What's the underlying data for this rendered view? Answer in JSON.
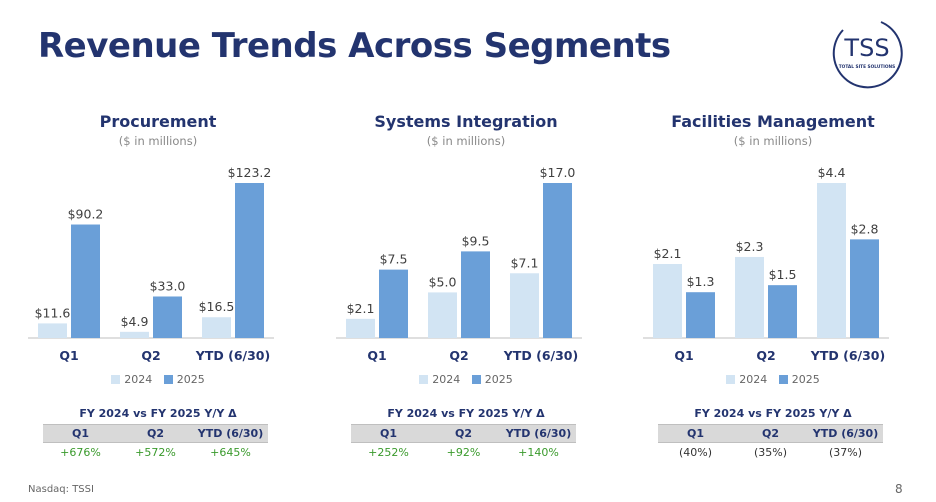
{
  "page": {
    "title": "Revenue Trends Across Segments",
    "logo_text": "TSS",
    "logo_subtext": "TOTAL SITE SOLUTIONS",
    "footer_left": "Nasdaq: TSSI",
    "page_number": "8"
  },
  "colors": {
    "series_2024": "#d2e4f3",
    "series_2025": "#6a9fd8",
    "title": "#23346f",
    "positive": "#3a9a2c"
  },
  "chart_data": [
    {
      "type": "bar",
      "title": "Procurement",
      "subtitle": "($ in millions)",
      "categories": [
        "Q1",
        "Q2",
        "YTD (6/30)"
      ],
      "series": [
        {
          "name": "2024",
          "values": [
            11.6,
            4.9,
            16.5
          ],
          "labels": [
            "$11.6",
            "$4.9",
            "$16.5"
          ]
        },
        {
          "name": "2025",
          "values": [
            90.2,
            33.0,
            123.2
          ],
          "labels": [
            "$90.2",
            "$33.0",
            "$123.2"
          ]
        }
      ],
      "ylim": [
        0,
        123.2
      ],
      "legend": "bottom",
      "grid": false,
      "yoy": {
        "title": "FY 2024 vs FY 2025 Y/Y Δ",
        "headers": [
          "Q1",
          "Q2",
          "YTD (6/30)"
        ],
        "values": [
          "+676%",
          "+572%",
          "+645%"
        ],
        "positive": true
      }
    },
    {
      "type": "bar",
      "title": "Systems Integration",
      "subtitle": "($ in millions)",
      "categories": [
        "Q1",
        "Q2",
        "YTD (6/30)"
      ],
      "series": [
        {
          "name": "2024",
          "values": [
            2.1,
            5.0,
            7.1
          ],
          "labels": [
            "$2.1",
            "$5.0",
            "$7.1"
          ]
        },
        {
          "name": "2025",
          "values": [
            7.5,
            9.5,
            17.0
          ],
          "labels": [
            "$7.5",
            "$9.5",
            "$17.0"
          ]
        }
      ],
      "ylim": [
        0,
        17.0
      ],
      "legend": "bottom",
      "grid": false,
      "yoy": {
        "title": "FY 2024 vs FY 2025 Y/Y Δ",
        "headers": [
          "Q1",
          "Q2",
          "YTD (6/30)"
        ],
        "values": [
          "+252%",
          "+92%",
          "+140%"
        ],
        "positive": true
      }
    },
    {
      "type": "bar",
      "title": "Facilities Management",
      "subtitle": "($ in millions)",
      "categories": [
        "Q1",
        "Q2",
        "YTD (6/30)"
      ],
      "series": [
        {
          "name": "2024",
          "values": [
            2.1,
            2.3,
            4.4
          ],
          "labels": [
            "$2.1",
            "$2.3",
            "$4.4"
          ]
        },
        {
          "name": "2025",
          "values": [
            1.3,
            1.5,
            2.8
          ],
          "labels": [
            "$1.3",
            "$1.5",
            "$2.8"
          ]
        }
      ],
      "ylim": [
        0,
        4.4
      ],
      "legend": "bottom",
      "grid": false,
      "yoy": {
        "title": "FY 2024 vs FY 2025 Y/Y Δ",
        "headers": [
          "Q1",
          "Q2",
          "YTD (6/30)"
        ],
        "values": [
          "(40%)",
          "(35%)",
          "(37%)"
        ],
        "positive": false
      }
    }
  ]
}
